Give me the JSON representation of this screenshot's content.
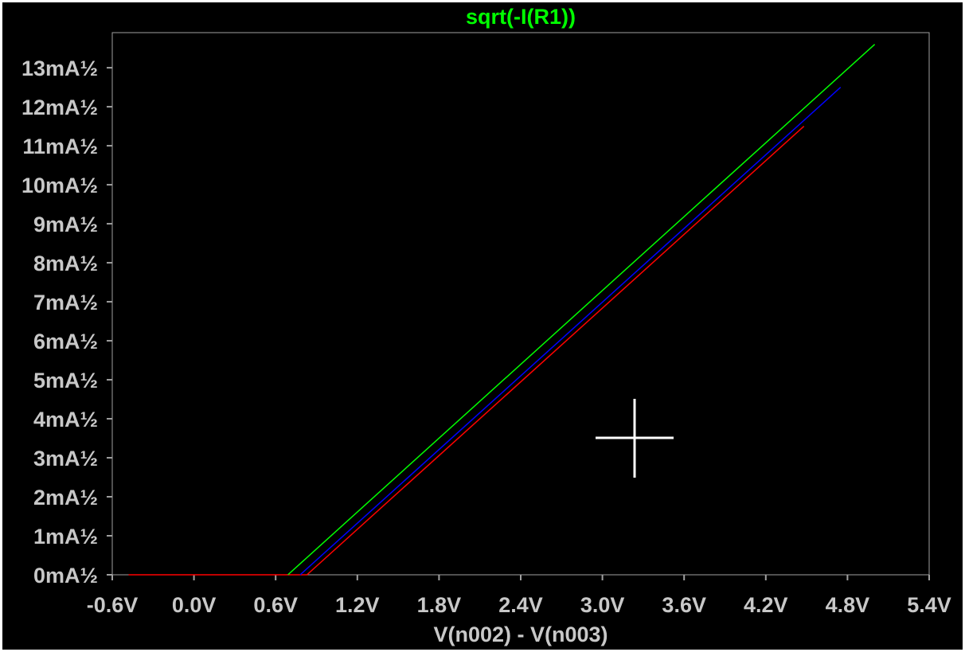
{
  "chart_data": {
    "type": "line",
    "title": "sqrt(-I(R1))",
    "xlabel": "V(n002) - V(n003)",
    "ylabel": "",
    "xlim": [
      -0.6,
      5.4
    ],
    "ylim": [
      0,
      13.9
    ],
    "x_ticks": [
      "-0.6V",
      "0.0V",
      "0.6V",
      "1.2V",
      "1.8V",
      "2.4V",
      "3.0V",
      "3.6V",
      "4.2V",
      "4.8V",
      "5.4V"
    ],
    "x_tick_values": [
      -0.6,
      0.0,
      0.6,
      1.2,
      1.8,
      2.4,
      3.0,
      3.6,
      4.2,
      4.8,
      5.4
    ],
    "y_ticks": [
      "0mA½",
      "1mA½",
      "2mA½",
      "3mA½",
      "4mA½",
      "5mA½",
      "6mA½",
      "7mA½",
      "8mA½",
      "9mA½",
      "10mA½",
      "11mA½",
      "12mA½",
      "13mA½"
    ],
    "y_tick_values": [
      0,
      1,
      2,
      3,
      4,
      5,
      6,
      7,
      8,
      9,
      10,
      11,
      12,
      13
    ],
    "grid": false,
    "background_color": "#000000",
    "frame_color": "#a0a0a0",
    "label_color": "#c8c8c8",
    "title_color": "#00ff00",
    "series": [
      {
        "color": "#ff0000",
        "x": [
          -0.48,
          0.83,
          4.48
        ],
        "y": [
          0,
          0,
          11.5
        ]
      },
      {
        "color": "#0000ff",
        "x": [
          0.78,
          4.75
        ],
        "y": [
          0,
          12.5
        ]
      },
      {
        "color": "#00ff00",
        "x": [
          0.69,
          5.0
        ],
        "y": [
          0,
          13.6
        ]
      }
    ]
  },
  "cursor": {
    "name": "crosshair-cursor",
    "color": "#ffffff"
  }
}
